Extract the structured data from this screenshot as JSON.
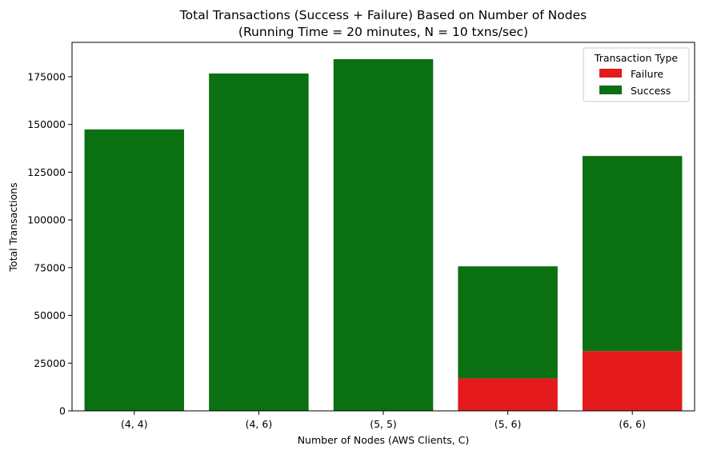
{
  "chart_data": {
    "type": "bar",
    "stacked": true,
    "title": "Total Transactions (Success + Failure) Based on Number of Nodes",
    "subtitle": "(Running Time = 20 minutes, N = 10 txns/sec)",
    "xlabel": "Number of Nodes (AWS Clients, C)",
    "ylabel": "Total Transactions",
    "categories": [
      "(4, 4)",
      "(4, 6)",
      "(5, 5)",
      "(5, 6)",
      "(6, 6)"
    ],
    "series": [
      {
        "name": "Failure",
        "color": "#e41a1c",
        "values": [
          0,
          0,
          0,
          17000,
          31300
        ]
      },
      {
        "name": "Success",
        "color": "#0b7012",
        "values": [
          147400,
          176700,
          184200,
          58700,
          102200
        ]
      }
    ],
    "ylim": [
      0,
      193000
    ],
    "yticks": [
      0,
      25000,
      50000,
      75000,
      100000,
      125000,
      150000,
      175000
    ],
    "grid": false,
    "legend": {
      "title": "Transaction Type",
      "position": "top-right"
    }
  }
}
